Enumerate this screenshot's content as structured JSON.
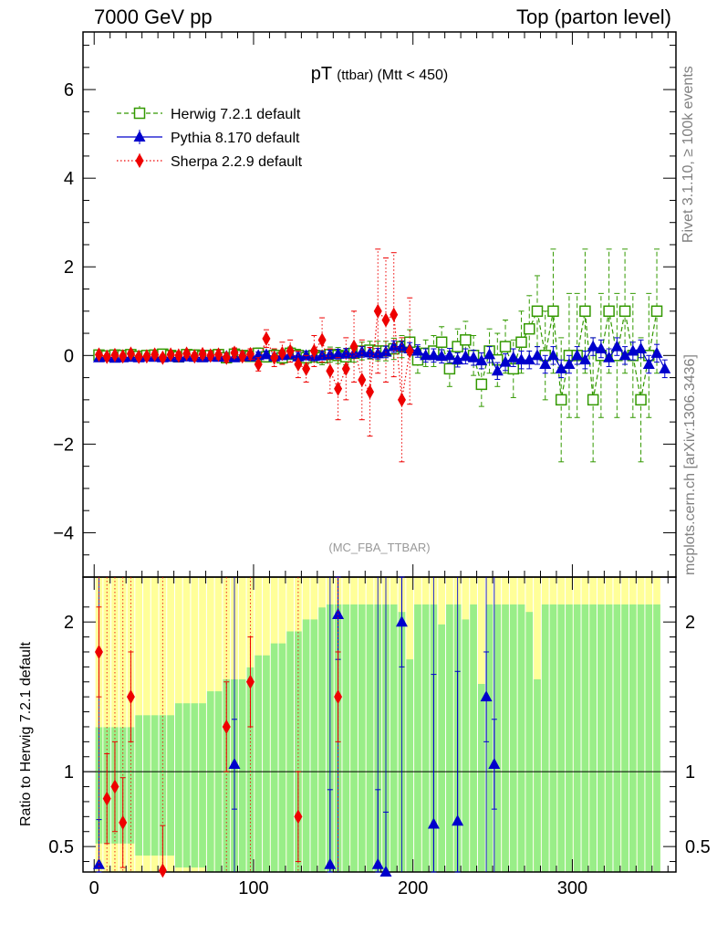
{
  "header": {
    "left": "7000 GeV pp",
    "right": "Top (parton level)"
  },
  "side_labels": {
    "rivet": "Rivet 3.1.10, ≥ 100k events",
    "mcplots": "mcplots.cern.ch [arXiv:1306.3436]"
  },
  "chart_data": [
    {
      "panel": "main",
      "type": "scatter",
      "title_main": "pT",
      "title_sub": "(ttbar)",
      "title_cut": "(Mtt < 450)",
      "watermark": "(MC_FBA_TTBAR)",
      "xlim": [
        -7,
        365
      ],
      "ylim": [
        -5,
        7.3
      ],
      "xticks": [
        0,
        100,
        200,
        300
      ],
      "yticks": [
        -4,
        -2,
        0,
        2,
        4,
        6
      ],
      "legend_position": "top-left",
      "series": [
        {
          "name": "Herwig 7.2.1 default",
          "color": "#339900",
          "marker": "open-square",
          "line": "dashed",
          "x": [
            3,
            8,
            13,
            18,
            23,
            28,
            33,
            38,
            43,
            48,
            53,
            58,
            63,
            68,
            73,
            78,
            83,
            88,
            93,
            98,
            103,
            108,
            113,
            118,
            123,
            128,
            133,
            138,
            143,
            148,
            153,
            158,
            163,
            168,
            173,
            178,
            183,
            188,
            193,
            198,
            203,
            208,
            213,
            218,
            223,
            228,
            233,
            238,
            243,
            248,
            253,
            258,
            263,
            268,
            273,
            278,
            283,
            288,
            293,
            298,
            303,
            308,
            313,
            318,
            323,
            328,
            333,
            338,
            343,
            348,
            353
          ],
          "y": [
            0.01,
            -0.01,
            0.01,
            0,
            0.02,
            -0.02,
            0,
            0.01,
            0.03,
            0,
            -0.03,
            0.02,
            0.01,
            -0.02,
            0,
            0.02,
            -0.05,
            0.03,
            0,
            -0.02,
            0.05,
            -0.03,
            0,
            -0.05,
            0.05,
            0,
            -0.05,
            0,
            -0.05,
            0.02,
            0,
            -0.03,
            0.05,
            0.1,
            0.12,
            0.1,
            0.1,
            0.15,
            0.2,
            0.3,
            -0.1,
            0.05,
            0.1,
            0.3,
            -0.3,
            0.2,
            0.35,
            0,
            -0.65,
            0.1,
            -0.1,
            0.2,
            -0.3,
            0.3,
            0.6,
            1,
            0,
            1,
            -1,
            0,
            0,
            1,
            -1,
            0,
            1,
            0,
            1,
            0,
            -1,
            0,
            1
          ],
          "err": [
            0.06,
            0.06,
            0.06,
            0.06,
            0.06,
            0.07,
            0.07,
            0.07,
            0.07,
            0.07,
            0.08,
            0.08,
            0.08,
            0.08,
            0.09,
            0.09,
            0.1,
            0.1,
            0.1,
            0.11,
            0.12,
            0.12,
            0.13,
            0.13,
            0.14,
            0.14,
            0.15,
            0.15,
            0.16,
            0.17,
            0.18,
            0.18,
            0.2,
            0.2,
            0.2,
            0.22,
            0.22,
            0.24,
            0.25,
            0.28,
            0.3,
            0.3,
            0.35,
            0.35,
            0.4,
            0.4,
            0.42,
            0.45,
            0.5,
            0.5,
            0.6,
            0.6,
            0.65,
            0.7,
            0.75,
            0.8,
            1,
            1.4,
            1.4,
            1.4,
            1.4,
            1.4,
            1.4,
            1.4,
            1.4,
            1.4,
            1.4,
            1.4,
            1.4,
            1.4,
            1.4
          ]
        },
        {
          "name": "Pythia 8.170 default",
          "color": "#0000cc",
          "marker": "filled-triangle",
          "line": "solid",
          "x": [
            3,
            8,
            13,
            18,
            23,
            28,
            33,
            38,
            43,
            48,
            53,
            58,
            63,
            68,
            73,
            78,
            83,
            88,
            93,
            98,
            103,
            108,
            113,
            118,
            123,
            128,
            133,
            138,
            143,
            148,
            153,
            158,
            163,
            168,
            173,
            178,
            183,
            188,
            193,
            198,
            203,
            208,
            213,
            218,
            223,
            228,
            233,
            238,
            243,
            248,
            253,
            258,
            263,
            268,
            273,
            278,
            283,
            288,
            293,
            298,
            303,
            308,
            313,
            318,
            323,
            328,
            333,
            338,
            343,
            348,
            353,
            358
          ],
          "y": [
            -0.05,
            -0.03,
            -0.06,
            -0.05,
            -0.04,
            -0.05,
            -0.03,
            -0.04,
            -0.05,
            -0.04,
            -0.05,
            -0.03,
            -0.04,
            -0.05,
            -0.03,
            -0.04,
            -0.02,
            -0.05,
            -0.01,
            -0.03,
            0,
            0.02,
            -0.03,
            0,
            0.02,
            -0.03,
            0,
            -0.02,
            0,
            0.02,
            0.03,
            0.05,
            0.05,
            0.08,
            0.06,
            0.04,
            0.08,
            0.2,
            0.2,
            0.15,
            0.1,
            0,
            0,
            -0.02,
            0,
            -0.1,
            -0.02,
            -0.05,
            -0.12,
            0.02,
            -0.35,
            -0.15,
            -0.05,
            -0.1,
            -0.1,
            0,
            -0.2,
            0,
            -0.3,
            -0.2,
            0,
            -0.1,
            0.2,
            0.15,
            -0.05,
            0.2,
            0,
            0.1,
            0.15,
            -0.2,
            0.05,
            -0.3
          ],
          "err": [
            0.04,
            0.04,
            0.04,
            0.04,
            0.04,
            0.05,
            0.05,
            0.05,
            0.05,
            0.05,
            0.05,
            0.06,
            0.06,
            0.06,
            0.06,
            0.06,
            0.07,
            0.07,
            0.07,
            0.07,
            0.08,
            0.08,
            0.08,
            0.09,
            0.09,
            0.1,
            0.1,
            0.1,
            0.1,
            0.1,
            0.11,
            0.11,
            0.11,
            0.12,
            0.12,
            0.12,
            0.13,
            0.13,
            0.13,
            0.14,
            0.14,
            0.15,
            0.15,
            0.15,
            0.16,
            0.16,
            0.17,
            0.17,
            0.18,
            0.18,
            0.19,
            0.19,
            0.2,
            0.2,
            0.2,
            0.2,
            0.2,
            0.2,
            0.2,
            0.2,
            0.2,
            0.2,
            0.2,
            0.2,
            0.2,
            0.2,
            0.2,
            0.2,
            0.2,
            0.2,
            0.2,
            0.2
          ]
        },
        {
          "name": "Sherpa 2.2.9 default",
          "color": "#ee0000",
          "marker": "filled-diamond",
          "line": "dotted",
          "x": [
            3,
            8,
            13,
            18,
            23,
            28,
            33,
            38,
            43,
            48,
            53,
            58,
            63,
            68,
            73,
            78,
            83,
            88,
            93,
            98,
            103,
            108,
            113,
            118,
            123,
            128,
            133,
            138,
            143,
            148,
            153,
            158,
            163,
            168,
            173,
            178,
            183,
            188,
            193,
            198
          ],
          "y": [
            0.02,
            -0.03,
            0.01,
            -0.02,
            0.04,
            -0.03,
            -0.02,
            0.02,
            -0.05,
            0.02,
            0,
            0.04,
            -0.02,
            0.03,
            0,
            0.02,
            -0.05,
            0.06,
            -0.02,
            0.03,
            -0.2,
            0.38,
            -0.05,
            0.05,
            0.1,
            -0.2,
            -0.3,
            0.1,
            0.35,
            -0.35,
            -0.75,
            -0.3,
            0.2,
            -0.55,
            -0.82,
            1,
            0.8,
            0.92,
            -1,
            0.1
          ],
          "err": [
            0.05,
            0.05,
            0.05,
            0.05,
            0.06,
            0.06,
            0.06,
            0.07,
            0.07,
            0.07,
            0.08,
            0.08,
            0.08,
            0.09,
            0.09,
            0.1,
            0.1,
            0.11,
            0.11,
            0.12,
            0.15,
            0.2,
            0.2,
            0.25,
            0.25,
            0.3,
            0.3,
            0.35,
            0.5,
            0.5,
            0.7,
            0.7,
            0.8,
            0.9,
            1,
            1.4,
            1.4,
            1.4,
            1.4,
            1.2
          ]
        }
      ]
    },
    {
      "panel": "ratio",
      "type": "scatter",
      "ylabel": "Ratio to Herwig 7.2.1 default",
      "xlim": [
        -7,
        365
      ],
      "ylim": [
        0.33,
        2.3
      ],
      "yticks": [
        0.5,
        1,
        2
      ],
      "yticklabels": [
        "0.5",
        "1",
        "2"
      ],
      "reference_line": 1,
      "band_colors": {
        "inner": "#99ee88",
        "outer": "#ffff99"
      },
      "series": [
        {
          "name": "Pythia 8.170 default",
          "color": "#0000cc",
          "x": [
            3,
            88,
            148,
            153,
            178,
            183,
            193,
            213,
            228,
            246,
            251
          ],
          "y": [
            0.38,
            1.05,
            0.38,
            2.05,
            0.38,
            0.33,
            2,
            0.65,
            0.67,
            1.5,
            1.05
          ],
          "err": [
            0.3,
            0.3,
            0.5,
            0.3,
            0.5,
            0.4,
            0.3,
            1,
            1,
            0.3,
            0.3
          ]
        },
        {
          "name": "Sherpa 2.2.9 default",
          "color": "#ee0000",
          "x": [
            3,
            8,
            13,
            18,
            23,
            43,
            83,
            98,
            128,
            153
          ],
          "y": [
            1.8,
            0.82,
            0.9,
            0.66,
            1.5,
            0.34,
            1.3,
            1.6,
            0.7,
            1.5
          ],
          "err": [
            0.3,
            0.3,
            0.3,
            0.3,
            0.3,
            0.3,
            0.3,
            0.3,
            0.3,
            0.3
          ]
        }
      ]
    }
  ]
}
